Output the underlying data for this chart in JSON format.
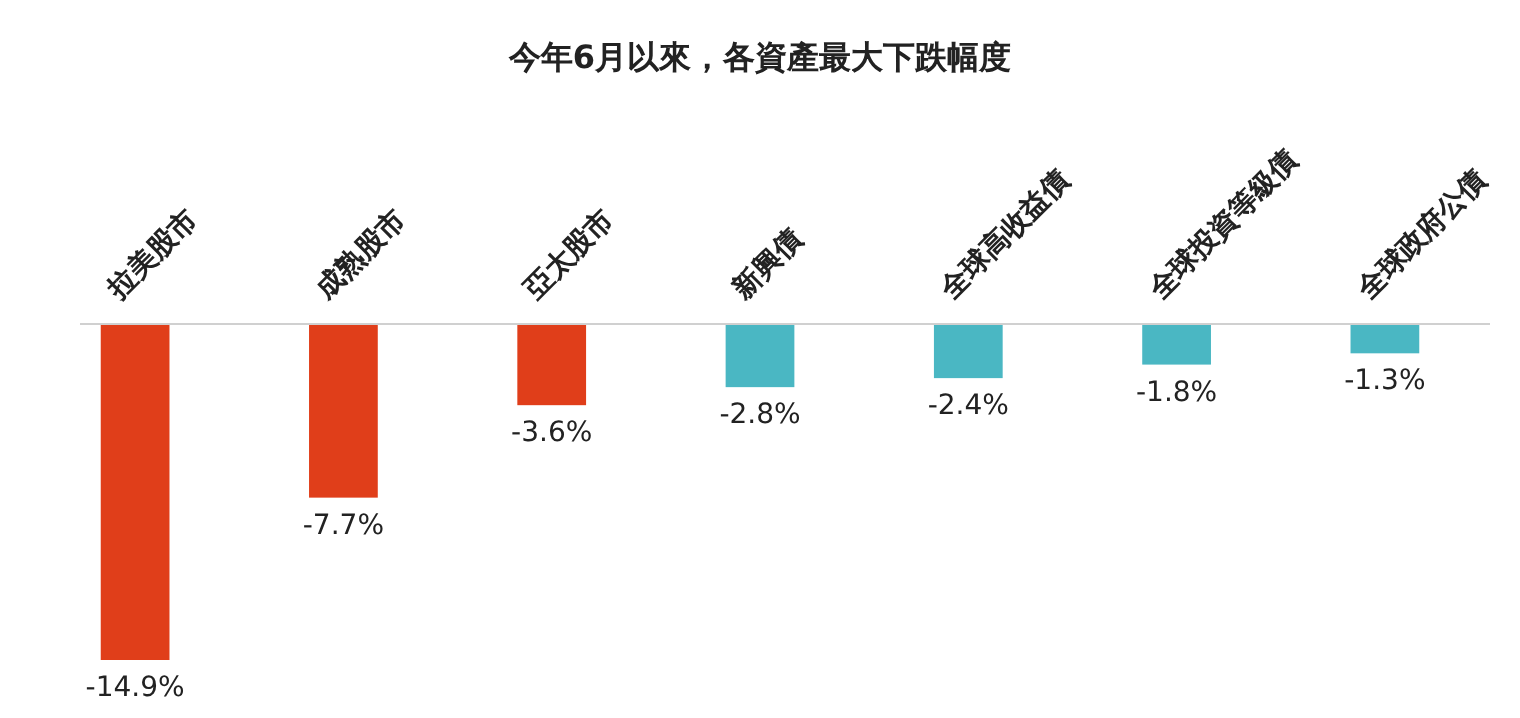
{
  "chart_data": {
    "type": "bar",
    "title": "今年6月以來，各資產最大下跌幅度",
    "categories": [
      "拉美股市",
      "成熟股市",
      "亞太股市",
      "新興債",
      "全球高收益債",
      "全球投資等級債",
      "全球政府公債"
    ],
    "values": [
      -14.9,
      -7.7,
      -3.6,
      -2.8,
      -2.4,
      -1.8,
      -1.3
    ],
    "colors": [
      "#e03e1a",
      "#e03e1a",
      "#e03e1a",
      "#4ab7c3",
      "#4ab7c3",
      "#4ab7c3",
      "#4ab7c3"
    ],
    "value_labels": [
      "-14.9%",
      "-7.7%",
      "-3.6%",
      "-2.8%",
      "-2.4%",
      "-1.8%",
      "-1.3%"
    ],
    "relative": false
  }
}
